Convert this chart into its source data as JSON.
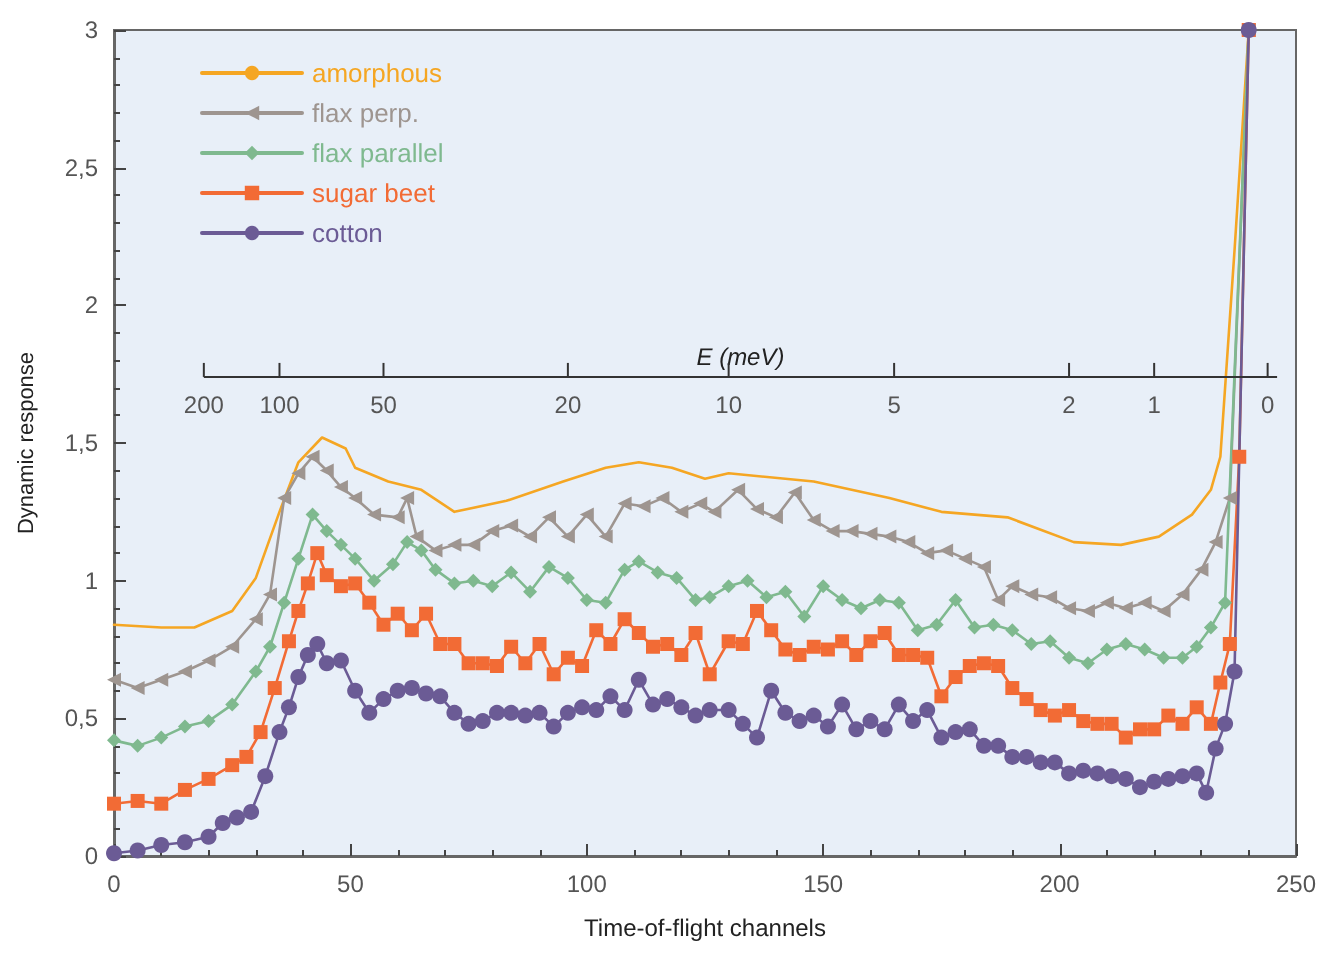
{
  "chart_data": {
    "type": "line",
    "xlabel": "Time-of-flight channels",
    "ylabel": "Dynamic response",
    "xlim": [
      0,
      250
    ],
    "xticks": [
      0,
      50,
      100,
      150,
      200,
      250
    ],
    "annotations": [
      "E (meV)",
      "200",
      "100",
      "50",
      "20",
      "10",
      "5",
      "2",
      "1",
      "0"
    ],
    "ylim": [
      0,
      3
    ],
    "yticks": [
      0,
      {
        "value": 0.5,
        "label": "0,5"
      },
      1,
      {
        "value": 1.5,
        "label": "1,5"
      },
      2,
      {
        "value": 2.5,
        "label": "2,5"
      },
      3
    ],
    "grid": false,
    "legend": "top left",
    "ref_lines": [
      {
        "axis": "y",
        "value": 1.74,
        "color": "#333333"
      }
    ],
    "series": [
      {
        "name": "amorphous",
        "color": "#f5a623",
        "marker": "none",
        "x": [
          0,
          10,
          17,
          25,
          30,
          35,
          39,
          44,
          49,
          51,
          58,
          65,
          72,
          83,
          95,
          104,
          111,
          118,
          125,
          130,
          148,
          164,
          175,
          189,
          203,
          213,
          221,
          228,
          232,
          234,
          237,
          240
        ],
        "values": [
          0.84,
          0.83,
          0.83,
          0.89,
          1.01,
          1.25,
          1.43,
          1.52,
          1.48,
          1.41,
          1.36,
          1.33,
          1.25,
          1.29,
          1.36,
          1.41,
          1.43,
          1.41,
          1.37,
          1.39,
          1.36,
          1.3,
          1.25,
          1.23,
          1.14,
          1.13,
          1.16,
          1.24,
          1.33,
          1.45,
          2.2,
          3
        ]
      },
      {
        "name": "flax perp.",
        "color": "#9e9590",
        "marker": "triangle",
        "x": [
          0,
          5,
          10,
          15,
          20,
          25,
          30,
          33,
          36,
          39,
          42,
          45,
          48,
          51,
          55,
          60,
          62,
          64,
          68,
          72,
          76,
          80,
          84,
          88,
          92,
          96,
          100,
          104,
          108,
          112,
          116,
          120,
          124,
          127,
          132,
          136,
          140,
          144,
          148,
          152,
          156,
          160,
          164,
          168,
          172,
          176,
          180,
          184,
          187,
          190,
          194,
          198,
          202,
          206,
          210,
          214,
          218,
          222,
          226,
          230,
          233,
          236,
          240
        ],
        "values": [
          0.64,
          0.61,
          0.64,
          0.67,
          0.71,
          0.76,
          0.86,
          0.95,
          1.3,
          1.39,
          1.45,
          1.4,
          1.34,
          1.3,
          1.24,
          1.23,
          1.3,
          1.16,
          1.11,
          1.13,
          1.13,
          1.18,
          1.2,
          1.16,
          1.23,
          1.16,
          1.24,
          1.16,
          1.28,
          1.27,
          1.3,
          1.25,
          1.28,
          1.25,
          1.33,
          1.26,
          1.23,
          1.32,
          1.22,
          1.18,
          1.18,
          1.17,
          1.16,
          1.14,
          1.1,
          1.11,
          1.08,
          1.05,
          0.93,
          0.98,
          0.95,
          0.94,
          0.9,
          0.89,
          0.92,
          0.9,
          0.92,
          0.89,
          0.95,
          1.04,
          1.14,
          1.3,
          3
        ]
      },
      {
        "name": "flax parallel",
        "color": "#7fb98f",
        "marker": "diamond",
        "x": [
          0,
          5,
          10,
          15,
          20,
          25,
          30,
          33,
          36,
          39,
          42,
          45,
          48,
          51,
          55,
          59,
          62,
          65,
          68,
          72,
          76,
          80,
          84,
          88,
          92,
          96,
          100,
          104,
          108,
          111,
          115,
          119,
          123,
          126,
          130,
          134,
          138,
          142,
          146,
          150,
          154,
          158,
          162,
          166,
          170,
          174,
          178,
          182,
          186,
          190,
          194,
          198,
          202,
          206,
          210,
          214,
          218,
          222,
          226,
          229,
          232,
          235,
          240
        ],
        "values": [
          0.42,
          0.4,
          0.43,
          0.47,
          0.49,
          0.55,
          0.67,
          0.76,
          0.92,
          1.08,
          1.24,
          1.18,
          1.13,
          1.08,
          1.0,
          1.06,
          1.14,
          1.11,
          1.04,
          0.99,
          1.0,
          0.98,
          1.03,
          0.96,
          1.05,
          1.01,
          0.93,
          0.92,
          1.04,
          1.07,
          1.03,
          1.01,
          0.93,
          0.94,
          0.98,
          1.0,
          0.94,
          0.96,
          0.87,
          0.98,
          0.93,
          0.9,
          0.93,
          0.92,
          0.82,
          0.84,
          0.93,
          0.83,
          0.84,
          0.82,
          0.77,
          0.78,
          0.72,
          0.7,
          0.75,
          0.77,
          0.75,
          0.72,
          0.72,
          0.76,
          0.83,
          0.92,
          3
        ]
      },
      {
        "name": "sugar beet",
        "color": "#f26b35",
        "marker": "square",
        "x": [
          0,
          5,
          10,
          15,
          20,
          25,
          28,
          31,
          34,
          37,
          39,
          41,
          43,
          45,
          48,
          51,
          54,
          57,
          60,
          63,
          66,
          69,
          72,
          75,
          78,
          81,
          84,
          87,
          90,
          93,
          96,
          99,
          102,
          105,
          108,
          111,
          114,
          117,
          120,
          123,
          126,
          130,
          133,
          136,
          139,
          142,
          145,
          148,
          151,
          154,
          157,
          160,
          163,
          166,
          169,
          172,
          175,
          178,
          181,
          184,
          187,
          190,
          193,
          196,
          199,
          202,
          205,
          208,
          211,
          214,
          217,
          220,
          223,
          226,
          229,
          232,
          234,
          236,
          238,
          240
        ],
        "values": [
          0.19,
          0.2,
          0.19,
          0.24,
          0.28,
          0.33,
          0.36,
          0.45,
          0.61,
          0.78,
          0.89,
          0.99,
          1.1,
          1.02,
          0.98,
          0.99,
          0.92,
          0.84,
          0.88,
          0.82,
          0.88,
          0.77,
          0.77,
          0.7,
          0.7,
          0.69,
          0.76,
          0.7,
          0.77,
          0.66,
          0.72,
          0.69,
          0.82,
          0.77,
          0.86,
          0.81,
          0.76,
          0.77,
          0.73,
          0.81,
          0.66,
          0.78,
          0.77,
          0.89,
          0.82,
          0.75,
          0.73,
          0.76,
          0.75,
          0.78,
          0.73,
          0.78,
          0.81,
          0.73,
          0.73,
          0.72,
          0.58,
          0.65,
          0.69,
          0.7,
          0.69,
          0.61,
          0.57,
          0.53,
          0.51,
          0.53,
          0.49,
          0.48,
          0.48,
          0.43,
          0.46,
          0.46,
          0.51,
          0.48,
          0.54,
          0.48,
          0.63,
          0.77,
          1.45,
          3
        ]
      },
      {
        "name": "cotton",
        "color": "#6b5b95",
        "marker": "circle",
        "x": [
          0,
          5,
          10,
          15,
          20,
          23,
          26,
          29,
          32,
          35,
          37,
          39,
          41,
          43,
          45,
          48,
          51,
          54,
          57,
          60,
          63,
          66,
          69,
          72,
          75,
          78,
          81,
          84,
          87,
          90,
          93,
          96,
          99,
          102,
          105,
          108,
          111,
          114,
          117,
          120,
          123,
          126,
          130,
          133,
          136,
          139,
          142,
          145,
          148,
          151,
          154,
          157,
          160,
          163,
          166,
          169,
          172,
          175,
          178,
          181,
          184,
          187,
          190,
          193,
          196,
          199,
          202,
          205,
          208,
          211,
          214,
          217,
          220,
          223,
          226,
          229,
          231,
          233,
          235,
          237,
          240
        ],
        "values": [
          0.01,
          0.02,
          0.04,
          0.05,
          0.07,
          0.12,
          0.14,
          0.16,
          0.29,
          0.45,
          0.54,
          0.65,
          0.73,
          0.77,
          0.7,
          0.71,
          0.6,
          0.52,
          0.57,
          0.6,
          0.61,
          0.59,
          0.58,
          0.52,
          0.48,
          0.49,
          0.52,
          0.52,
          0.51,
          0.52,
          0.47,
          0.52,
          0.54,
          0.53,
          0.58,
          0.53,
          0.64,
          0.55,
          0.57,
          0.54,
          0.51,
          0.53,
          0.53,
          0.48,
          0.43,
          0.6,
          0.52,
          0.49,
          0.51,
          0.47,
          0.55,
          0.46,
          0.49,
          0.46,
          0.55,
          0.49,
          0.53,
          0.43,
          0.45,
          0.46,
          0.4,
          0.4,
          0.36,
          0.36,
          0.34,
          0.34,
          0.3,
          0.31,
          0.3,
          0.29,
          0.28,
          0.25,
          0.27,
          0.28,
          0.29,
          0.3,
          0.23,
          0.39,
          0.48,
          0.67,
          3
        ]
      }
    ]
  }
}
